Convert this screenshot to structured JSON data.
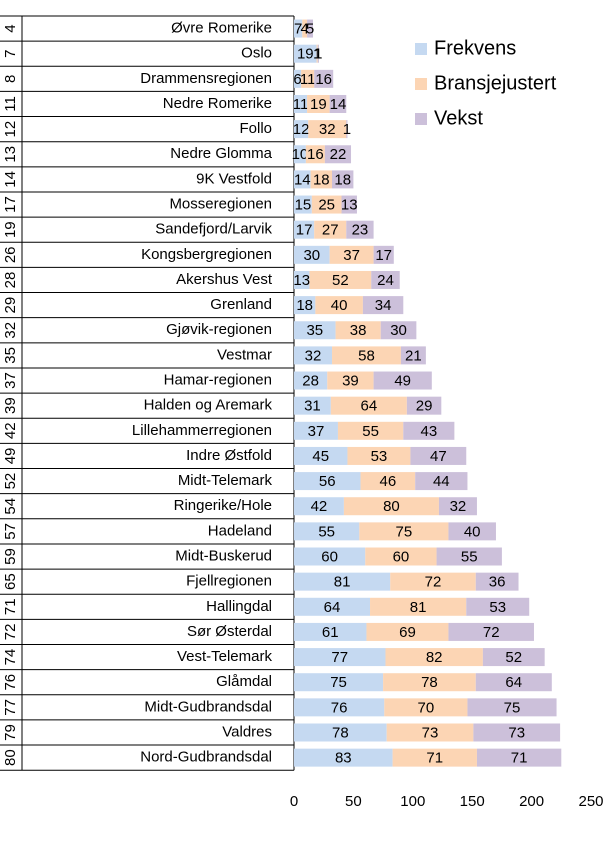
{
  "chart_data": {
    "type": "stacked-bar-horizontal",
    "ranks": [
      "4",
      "7",
      "8",
      "11",
      "12",
      "13",
      "14",
      "17",
      "19",
      "26",
      "28",
      "29",
      "32",
      "35",
      "37",
      "39",
      "42",
      "49",
      "52",
      "54",
      "57",
      "59",
      "65",
      "71",
      "72",
      "74",
      "76",
      "77",
      "79",
      "80"
    ],
    "categories": [
      "Øvre Romerike",
      "Oslo",
      "Drammensregionen",
      "Nedre Romerike",
      "Follo",
      "Nedre Glomma",
      "9K Vestfold",
      "Mosseregionen",
      "Sandefjord/Larvik",
      "Kongsbergregionen",
      "Akershus Vest",
      "Grenland",
      "Gjøvik-regionen",
      "Vestmar",
      "Hamar-regionen",
      "Halden og Aremark",
      "Lillehammerregionen",
      "Indre Østfold",
      "Midt-Telemark",
      "Ringerike/Hole",
      "Hadeland",
      "Midt-Buskerud",
      "Fjellregionen",
      "Hallingdal",
      "Sør Østerdal",
      "Vest-Telemark",
      "Glåmdal",
      "Midt-Gudbrandsdal",
      "Valdres",
      "Nord-Gudbrandsdal"
    ],
    "series": [
      {
        "name": "Frekvens",
        "color": "#c5d9f1",
        "values": [
          7,
          19,
          6,
          11,
          12,
          10,
          14,
          15,
          17,
          30,
          13,
          18,
          35,
          32,
          28,
          31,
          37,
          45,
          56,
          42,
          55,
          60,
          81,
          64,
          61,
          77,
          75,
          76,
          78,
          83
        ]
      },
      {
        "name": "Bransjejustert",
        "color": "#fcd5b4",
        "values": [
          4,
          1,
          11,
          19,
          32,
          16,
          18,
          25,
          27,
          37,
          52,
          40,
          38,
          58,
          39,
          64,
          55,
          53,
          46,
          80,
          75,
          60,
          72,
          81,
          69,
          82,
          78,
          70,
          73,
          71
        ]
      },
      {
        "name": "Vekst",
        "color": "#ccc0da",
        "values": [
          5,
          1,
          16,
          14,
          1,
          22,
          18,
          13,
          23,
          17,
          24,
          34,
          30,
          21,
          49,
          29,
          43,
          47,
          44,
          32,
          40,
          55,
          36,
          53,
          72,
          52,
          64,
          75,
          73,
          71
        ]
      }
    ],
    "xlim": [
      0,
      250
    ],
    "xticks": [
      0,
      50,
      100,
      150,
      200,
      250
    ],
    "legend": "top-right"
  }
}
